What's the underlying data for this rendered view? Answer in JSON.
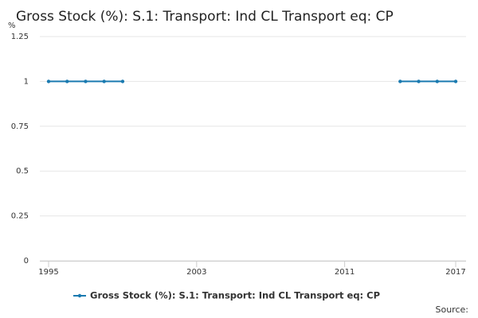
{
  "chart_data": {
    "type": "line",
    "title": "Gross Stock (%): S.1: Transport: Ind CL Transport eq: CP",
    "y_label": "%",
    "source": "Source:",
    "x": [
      1995,
      1996,
      1997,
      1998,
      1999,
      2000,
      2001,
      2002,
      2003,
      2004,
      2005,
      2006,
      2007,
      2008,
      2009,
      2010,
      2011,
      2012,
      2013,
      2014,
      2015,
      2016,
      2017
    ],
    "series": [
      {
        "name": "Gross Stock (%): S.1: Transport: Ind CL Transport eq: CP",
        "color": "#1a7ab0",
        "values": [
          1,
          1,
          1,
          1,
          1,
          null,
          null,
          null,
          null,
          null,
          null,
          null,
          null,
          null,
          null,
          null,
          null,
          null,
          null,
          1,
          1,
          1,
          1
        ]
      }
    ],
    "xlim": [
      1995,
      2017
    ],
    "xticks": [
      1995,
      2003,
      2011,
      2017
    ],
    "ylim": [
      0,
      1.25
    ],
    "yticks": [
      0,
      0.25,
      0.5,
      0.75,
      1,
      1.25
    ],
    "grid": true,
    "legend": "bottom"
  }
}
